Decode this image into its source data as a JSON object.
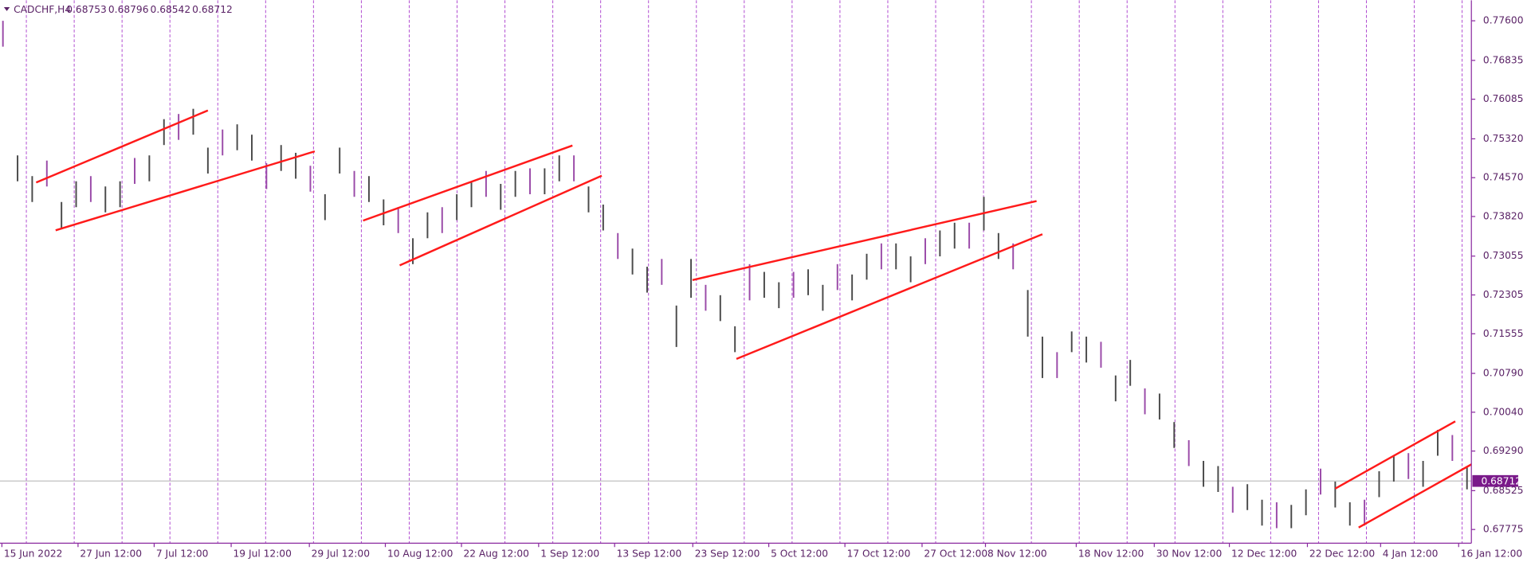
{
  "chart_data": {
    "type": "ohlc",
    "symbol": "CADCHF,H4",
    "header_values": [
      0.68753,
      0.68796,
      0.68542,
      0.68712
    ],
    "bar_color": "#4a4a4a",
    "xlim": [
      -0.2,
      100.3
    ],
    "ylim": [
      0.67511,
      0.77995
    ],
    "grid": false,
    "high": [
      0.776,
      0.75,
      0.746,
      0.749,
      0.741,
      0.745,
      0.746,
      0.744,
      0.745,
      0.7495,
      0.75,
      0.757,
      0.758,
      0.759,
      0.7515,
      0.755,
      0.756,
      0.754,
      0.7485,
      0.752,
      0.7505,
      0.748,
      0.7425,
      0.7515,
      0.747,
      0.746,
      0.7415,
      0.74,
      0.734,
      0.739,
      0.74,
      0.7425,
      0.745,
      0.747,
      0.7445,
      0.747,
      0.7475,
      0.7475,
      0.75,
      0.75,
      0.744,
      0.7405,
      0.735,
      0.732,
      0.7285,
      0.73,
      0.721,
      0.73,
      0.725,
      0.723,
      0.717,
      0.729,
      0.7275,
      0.7255,
      0.7275,
      0.728,
      0.725,
      0.729,
      0.727,
      0.731,
      0.733,
      0.733,
      0.7305,
      0.734,
      0.7355,
      0.737,
      0.737,
      0.742,
      0.735,
      0.733,
      0.724,
      0.715,
      0.712,
      0.716,
      0.715,
      0.714,
      0.7075,
      0.7105,
      0.705,
      0.704,
      0.6985,
      0.695,
      0.691,
      0.69,
      0.686,
      0.6865,
      0.6835,
      0.683,
      0.6825,
      0.6855,
      0.6895,
      0.687,
      0.683,
      0.6835,
      0.689,
      0.692,
      0.6925,
      0.691,
      0.697,
      0.696,
      0.69
    ],
    "low": [
      0.771,
      0.745,
      0.741,
      0.744,
      0.736,
      0.74,
      0.741,
      0.739,
      0.74,
      0.7445,
      0.745,
      0.752,
      0.753,
      0.754,
      0.7465,
      0.75,
      0.751,
      0.749,
      0.7435,
      0.747,
      0.7455,
      0.743,
      0.7375,
      0.7465,
      0.742,
      0.741,
      0.7365,
      0.735,
      0.729,
      0.734,
      0.735,
      0.7375,
      0.74,
      0.742,
      0.7395,
      0.742,
      0.7425,
      0.7425,
      0.745,
      0.745,
      0.739,
      0.7355,
      0.73,
      0.727,
      0.7235,
      0.725,
      0.713,
      0.7225,
      0.72,
      0.718,
      0.712,
      0.722,
      0.7225,
      0.7205,
      0.7225,
      0.723,
      0.72,
      0.724,
      0.722,
      0.726,
      0.728,
      0.728,
      0.7255,
      0.729,
      0.7305,
      0.732,
      0.732,
      0.7355,
      0.73,
      0.728,
      0.715,
      0.707,
      0.707,
      0.712,
      0.71,
      0.709,
      0.7025,
      0.7055,
      0.7,
      0.699,
      0.6935,
      0.69,
      0.686,
      0.685,
      0.681,
      0.6815,
      0.6785,
      0.678,
      0.678,
      0.6805,
      0.6845,
      0.682,
      0.6785,
      0.6785,
      0.684,
      0.687,
      0.6875,
      0.686,
      0.692,
      0.691,
      0.6855
    ],
    "trendline_color": "#ff1a1a",
    "trendlines": [
      {
        "x1": 2.27,
        "y1": 0.74476,
        "x2": 14.0,
        "y2": 0.75868
      },
      {
        "x1": 3.6,
        "y1": 0.73553,
        "x2": 21.3,
        "y2": 0.75078
      },
      {
        "x1": 24.6,
        "y1": 0.73741,
        "x2": 38.9,
        "y2": 0.75191
      },
      {
        "x1": 27.1,
        "y1": 0.72876,
        "x2": 40.9,
        "y2": 0.74607
      },
      {
        "x1": 47.1,
        "y1": 0.72593,
        "x2": 70.6,
        "y2": 0.74118
      },
      {
        "x1": 50.1,
        "y1": 0.71069,
        "x2": 71.0,
        "y2": 0.73478
      },
      {
        "x1": 91.0,
        "y1": 0.68565,
        "x2": 99.2,
        "y2": 0.69864
      },
      {
        "x1": 92.6,
        "y1": 0.67813,
        "x2": 100.4,
        "y2": 0.69049
      }
    ],
    "current_price": 0.68712,
    "yticks": [
      {
        "value": 0.776,
        "label": "0.77600"
      },
      {
        "value": 0.76835,
        "label": "0.76835"
      },
      {
        "value": 0.76085,
        "label": "0.76085"
      },
      {
        "value": 0.7532,
        "label": "0.75320"
      },
      {
        "value": 0.7457,
        "label": "0.74570"
      },
      {
        "value": 0.7382,
        "label": "0.73820"
      },
      {
        "value": 0.73055,
        "label": "0.73055"
      },
      {
        "value": 0.72305,
        "label": "0.72305"
      },
      {
        "value": 0.71555,
        "label": "0.71555"
      },
      {
        "value": 0.7079,
        "label": "0.70790"
      },
      {
        "value": 0.7004,
        "label": "0.70040"
      },
      {
        "value": 0.6929,
        "label": "0.69290"
      },
      {
        "value": 0.68525,
        "label": "0.68525"
      },
      {
        "value": 0.67775,
        "label": "0.67775"
      }
    ],
    "xticks": [
      {
        "value": -0.07,
        "label": "15 Jun 2022"
      },
      {
        "value": 5.13,
        "label": "27 Jun 12:00"
      },
      {
        "value": 10.33,
        "label": "7 Jul 12:00"
      },
      {
        "value": 15.59,
        "label": "19 Jul 12:00"
      },
      {
        "value": 20.93,
        "label": "29 Jul 12:00"
      },
      {
        "value": 26.12,
        "label": "10 Aug 12:00"
      },
      {
        "value": 31.32,
        "label": "22 Aug 12:00"
      },
      {
        "value": 36.59,
        "label": "1 Sep 12:00"
      },
      {
        "value": 41.78,
        "label": "13 Sep 12:00"
      },
      {
        "value": 47.12,
        "label": "23 Sep 12:00"
      },
      {
        "value": 52.31,
        "label": "5 Oct 12:00"
      },
      {
        "value": 57.51,
        "label": "17 Oct 12:00"
      },
      {
        "value": 62.78,
        "label": "27 Oct 12:00"
      },
      {
        "value": 67.11,
        "label": "8 Nov 12:00"
      },
      {
        "value": 73.31,
        "label": "18 Nov 12:00"
      },
      {
        "value": 78.64,
        "label": "30 Nov 12:00"
      },
      {
        "value": 83.77,
        "label": "12 Dec 12:00"
      },
      {
        "value": 89.1,
        "label": "22 Dec 12:00"
      },
      {
        "value": 94.1,
        "label": "4 Jan 12:00"
      },
      {
        "value": 99.43,
        "label": "16 Jan 12:00"
      }
    ]
  }
}
